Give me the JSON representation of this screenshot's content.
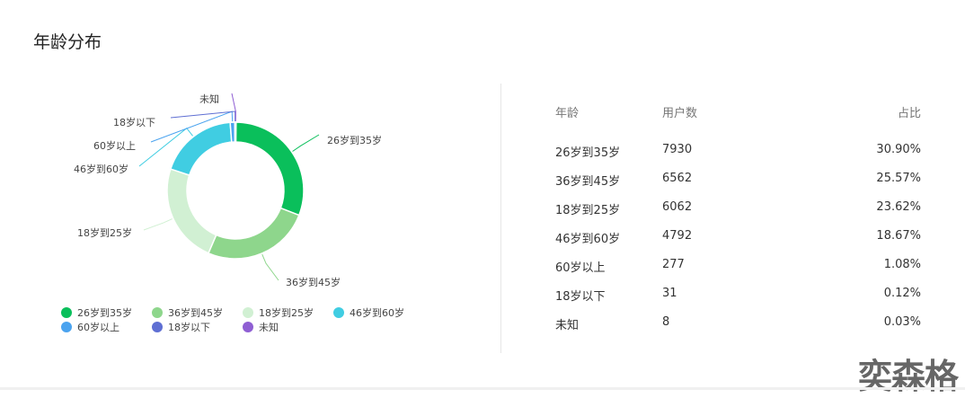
{
  "title": "年龄分布",
  "chart_data": {
    "type": "pie",
    "donut": true,
    "categories": [
      "26岁到35岁",
      "36岁到45岁",
      "18岁到25岁",
      "46岁到60岁",
      "60岁以上",
      "18岁以下",
      "未知"
    ],
    "values": [
      7930,
      6562,
      6062,
      4792,
      277,
      31,
      8
    ],
    "colors": [
      "#0abf5b",
      "#8ed68c",
      "#d1f0d3",
      "#40cde2",
      "#4ba3ef",
      "#5f6fd3",
      "#8f5fd3"
    ],
    "legend": "bottom"
  },
  "table": {
    "headers": [
      "年龄",
      "用户数",
      "占比"
    ],
    "rows": [
      [
        "26岁到35岁",
        "7930",
        "30.90%"
      ],
      [
        "36岁到45岁",
        "6562",
        "25.57%"
      ],
      [
        "18岁到25岁",
        "6062",
        "23.62%"
      ],
      [
        "46岁到60岁",
        "4792",
        "18.67%"
      ],
      [
        "60岁以上",
        "277",
        "1.08%"
      ],
      [
        "18岁以下",
        "31",
        "0.12%"
      ],
      [
        "未知",
        "8",
        "0.03%"
      ]
    ]
  },
  "watermark": "奕森格"
}
